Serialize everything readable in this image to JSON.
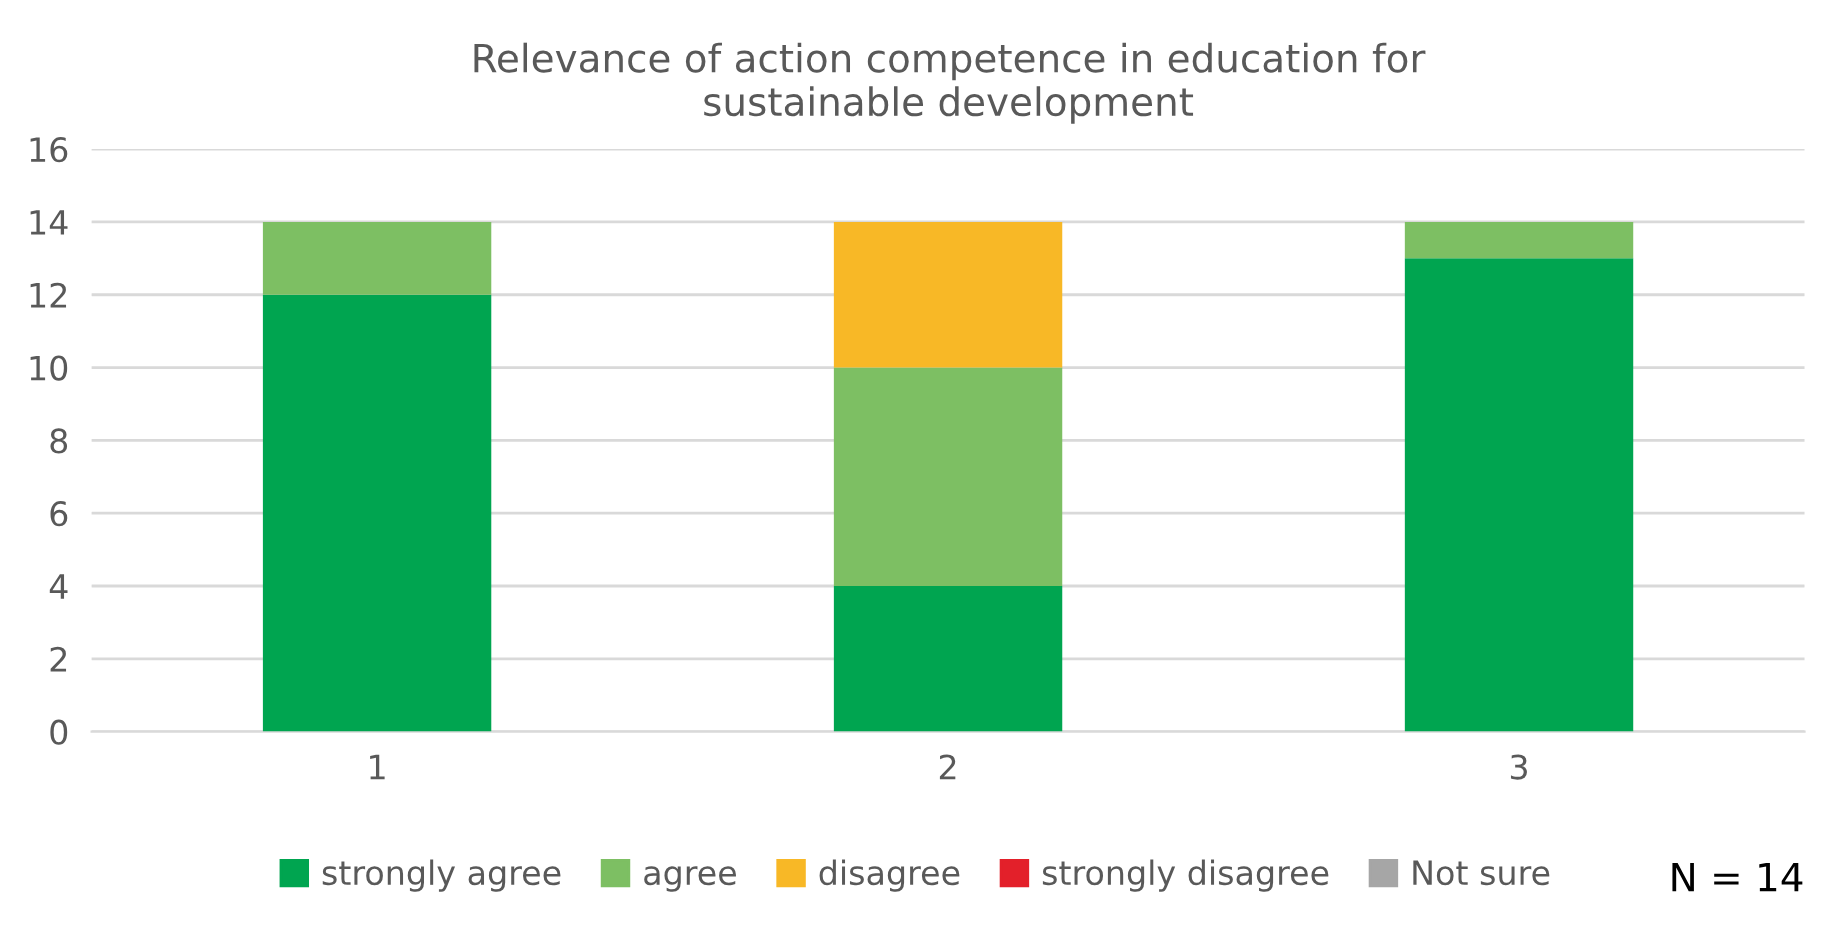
{
  "chart_data": {
    "type": "bar",
    "title": "Relevance of action competence in education for\nsustainable development",
    "categories": [
      "1",
      "2",
      "3"
    ],
    "stacked": true,
    "series": [
      {
        "name": "strongly agree",
        "color": "#00a550",
        "values": [
          12,
          4,
          13
        ]
      },
      {
        "name": "agree",
        "color": "#7dbf63",
        "values": [
          2,
          6,
          1
        ]
      },
      {
        "name": "disagree",
        "color": "#f8b826",
        "values": [
          0,
          4,
          0
        ]
      },
      {
        "name": "strongly disagree",
        "color": "#e3202a",
        "values": [
          0,
          0,
          0
        ]
      },
      {
        "name": "Not sure",
        "color": "#a6a6a6",
        "values": [
          0,
          0,
          0
        ]
      }
    ],
    "ylim": [
      0,
      16
    ],
    "yticks": [
      0,
      2,
      4,
      6,
      8,
      10,
      12,
      14,
      16
    ],
    "grid": "y",
    "legend": "bottom",
    "annotations": [
      "N = 14"
    ]
  }
}
